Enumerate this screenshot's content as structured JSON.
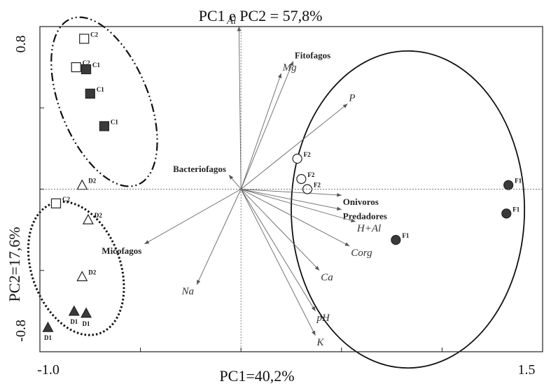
{
  "chart_data": {
    "type": "scatter",
    "title": "PC1 e PC2 = 57,8%",
    "xlabel": "PC1=40,2%",
    "ylabel": "PC2=17,6%",
    "xlim": [
      -1.0,
      1.5
    ],
    "ylim": [
      -0.8,
      0.8
    ],
    "x_tick_labels": [
      "-1.0",
      "1.5"
    ],
    "y_tick_labels": [
      "0.8",
      "-0.8"
    ],
    "points": [
      {
        "label": "C2",
        "x": -0.78,
        "y": 0.74,
        "shape": "square",
        "filled": false
      },
      {
        "label": "C2",
        "x": -0.82,
        "y": 0.6,
        "shape": "square",
        "filled": false
      },
      {
        "label": "C1",
        "x": -0.77,
        "y": 0.59,
        "shape": "square",
        "filled": true
      },
      {
        "label": "C1",
        "x": -0.75,
        "y": 0.47,
        "shape": "square",
        "filled": true
      },
      {
        "label": "C1",
        "x": -0.68,
        "y": 0.31,
        "shape": "square",
        "filled": true
      },
      {
        "label": "C2",
        "x": -0.92,
        "y": -0.07,
        "shape": "square",
        "filled": false
      },
      {
        "label": "D2",
        "x": -0.79,
        "y": 0.02,
        "shape": "triangle",
        "filled": false
      },
      {
        "label": "D2",
        "x": -0.76,
        "y": -0.15,
        "shape": "triangle",
        "filled": false
      },
      {
        "label": "D2",
        "x": -0.79,
        "y": -0.43,
        "shape": "triangle",
        "filled": false
      },
      {
        "label": "D1",
        "x": -0.83,
        "y": -0.6,
        "shape": "triangle",
        "filled": true
      },
      {
        "label": "D1",
        "x": -0.77,
        "y": -0.61,
        "shape": "triangle",
        "filled": true
      },
      {
        "label": "D1",
        "x": -0.96,
        "y": -0.68,
        "shape": "triangle",
        "filled": true
      },
      {
        "label": "F2",
        "x": 0.28,
        "y": 0.15,
        "shape": "circle",
        "filled": false
      },
      {
        "label": "F2",
        "x": 0.3,
        "y": 0.05,
        "shape": "circle",
        "filled": false
      },
      {
        "label": "F2",
        "x": 0.33,
        "y": 0.0,
        "shape": "circle",
        "filled": false
      },
      {
        "label": "F1",
        "x": 1.33,
        "y": 0.02,
        "shape": "circle",
        "filled": true
      },
      {
        "label": "F1",
        "x": 1.32,
        "y": -0.12,
        "shape": "circle",
        "filled": true
      },
      {
        "label": "F1",
        "x": 0.77,
        "y": -0.25,
        "shape": "circle",
        "filled": true
      }
    ],
    "vectors": [
      {
        "label": "Al",
        "x": -0.01,
        "y": 0.8,
        "kind": "variable"
      },
      {
        "label": "Mg",
        "x": 0.2,
        "y": 0.57,
        "kind": "variable"
      },
      {
        "label": "Fitofagos",
        "x": 0.26,
        "y": 0.63,
        "kind": "group"
      },
      {
        "label": "P",
        "x": 0.53,
        "y": 0.42,
        "kind": "variable"
      },
      {
        "label": "Bacteriofagos",
        "x": -0.06,
        "y": 0.07,
        "kind": "group"
      },
      {
        "label": "Onivoros",
        "x": 0.5,
        "y": -0.03,
        "kind": "group"
      },
      {
        "label": "Predadores",
        "x": 0.5,
        "y": -0.1,
        "kind": "group"
      },
      {
        "label": "H+Al",
        "x": 0.57,
        "y": -0.16,
        "kind": "variable"
      },
      {
        "label": "Corg",
        "x": 0.54,
        "y": -0.28,
        "kind": "variable"
      },
      {
        "label": "Ca",
        "x": 0.39,
        "y": -0.4,
        "kind": "variable"
      },
      {
        "label": "pH",
        "x": 0.37,
        "y": -0.6,
        "kind": "variable"
      },
      {
        "label": "K",
        "x": 0.37,
        "y": -0.72,
        "kind": "variable"
      },
      {
        "label": "Na",
        "x": -0.22,
        "y": -0.47,
        "kind": "variable"
      },
      {
        "label": "Micofagos",
        "x": -0.48,
        "y": -0.27,
        "kind": "group"
      }
    ],
    "ellipses": [
      {
        "cx": -0.68,
        "cy": 0.43,
        "rx": 0.22,
        "ry": 0.44,
        "angle": 22,
        "style": "dash-dot-dot"
      },
      {
        "cx": -0.82,
        "cy": -0.39,
        "rx": 0.22,
        "ry": 0.34,
        "angle": 20,
        "style": "dotted"
      },
      {
        "cx": 0.83,
        "cy": -0.1,
        "rx": 0.58,
        "ry": 0.78,
        "angle": 0,
        "style": "solid"
      }
    ],
    "grid": false,
    "reference_lines": "dashed lines at x=0 and y=0"
  }
}
